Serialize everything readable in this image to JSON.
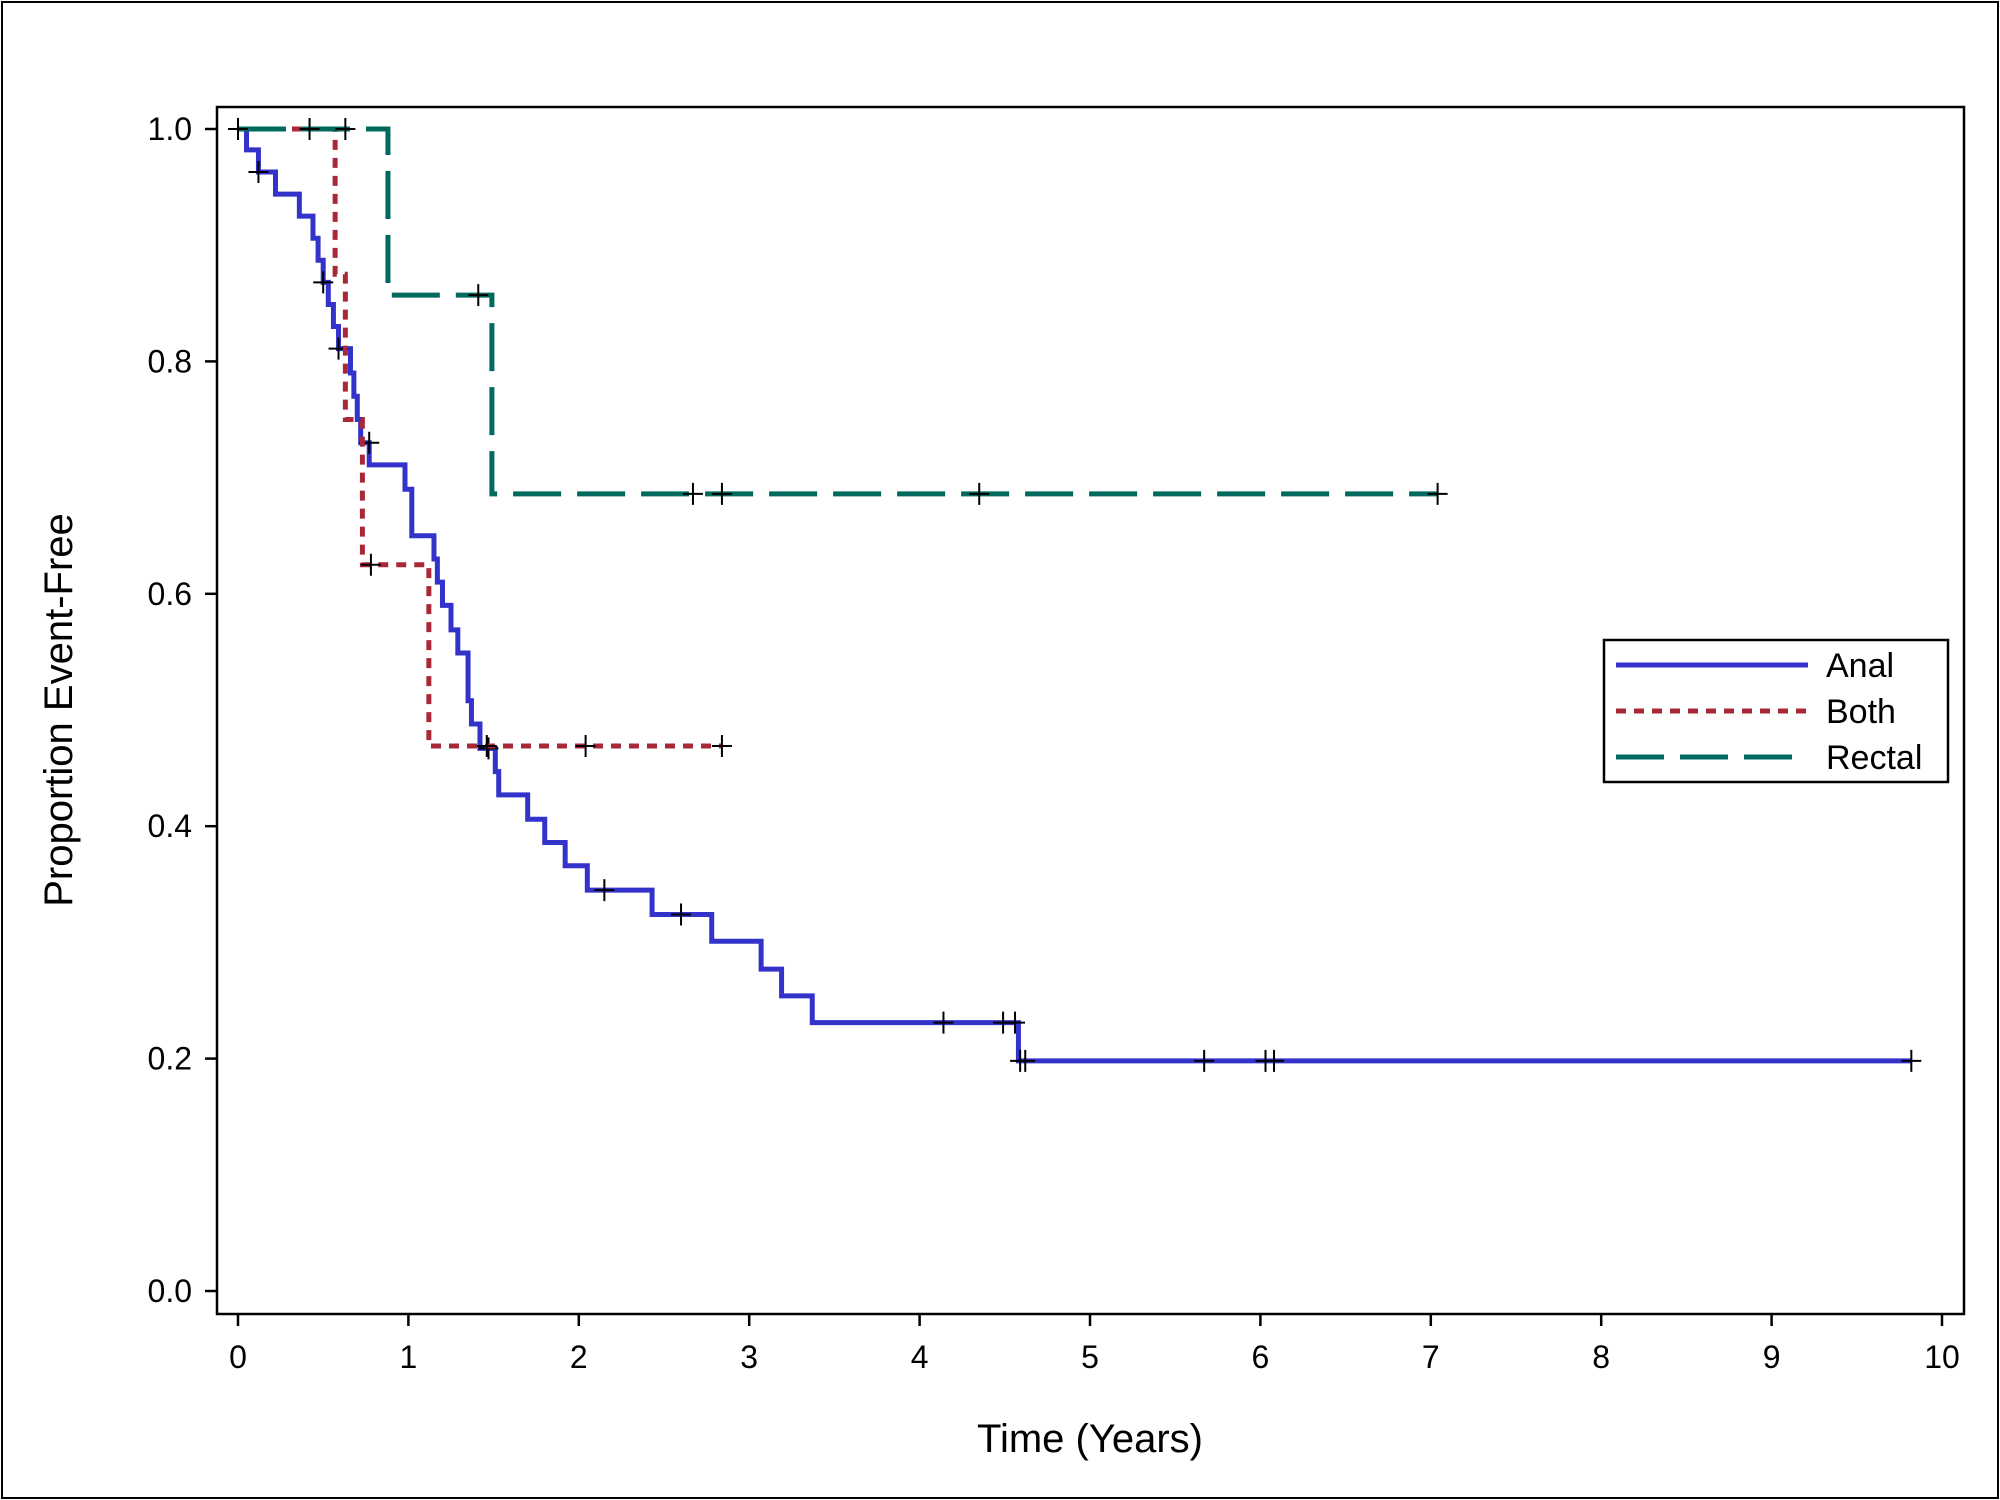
{
  "chart_data": {
    "type": "line",
    "title": "",
    "xlabel": "Time (Years)",
    "ylabel": "Proportion Event-Free",
    "xlim": [
      0,
      10
    ],
    "ylim": [
      0,
      1
    ],
    "x_ticks": [
      "0",
      "1",
      "2",
      "3",
      "4",
      "5",
      "6",
      "7",
      "8",
      "9",
      "10"
    ],
    "y_ticks": [
      "0.0",
      "0.2",
      "0.4",
      "0.6",
      "0.8",
      "1.0"
    ],
    "grid": false,
    "legend_position": "right",
    "step": true,
    "series": [
      {
        "name": "Anal",
        "color": "#3333cc",
        "line_style": "solid",
        "points": [
          [
            0,
            1.0
          ],
          [
            0.05,
            0.982
          ],
          [
            0.12,
            0.963
          ],
          [
            0.22,
            0.944
          ],
          [
            0.36,
            0.925
          ],
          [
            0.44,
            0.906
          ],
          [
            0.47,
            0.887
          ],
          [
            0.5,
            0.868
          ],
          [
            0.53,
            0.849
          ],
          [
            0.56,
            0.83
          ],
          [
            0.59,
            0.811
          ],
          [
            0.66,
            0.79
          ],
          [
            0.68,
            0.77
          ],
          [
            0.7,
            0.75
          ],
          [
            0.72,
            0.73
          ],
          [
            0.77,
            0.711
          ],
          [
            0.98,
            0.69
          ],
          [
            1.02,
            0.65
          ],
          [
            1.15,
            0.63
          ],
          [
            1.17,
            0.61
          ],
          [
            1.2,
            0.59
          ],
          [
            1.25,
            0.569
          ],
          [
            1.29,
            0.549
          ],
          [
            1.35,
            0.508
          ],
          [
            1.37,
            0.488
          ],
          [
            1.42,
            0.467
          ],
          [
            1.51,
            0.447
          ],
          [
            1.53,
            0.427
          ],
          [
            1.7,
            0.406
          ],
          [
            1.8,
            0.386
          ],
          [
            1.92,
            0.366
          ],
          [
            2.05,
            0.345
          ],
          [
            2.43,
            0.324
          ],
          [
            2.78,
            0.301
          ],
          [
            3.07,
            0.277
          ],
          [
            3.19,
            0.254
          ],
          [
            3.37,
            0.231
          ],
          [
            4.58,
            0.198
          ],
          [
            9.82,
            0.198
          ]
        ],
        "censored": [
          [
            0.12,
            0.963
          ],
          [
            0.5,
            0.868
          ],
          [
            0.59,
            0.811
          ],
          [
            0.77,
            0.73
          ],
          [
            1.47,
            0.467
          ],
          [
            2.15,
            0.345
          ],
          [
            2.6,
            0.324
          ],
          [
            4.14,
            0.231
          ],
          [
            4.49,
            0.231
          ],
          [
            4.56,
            0.231
          ],
          [
            4.59,
            0.198
          ],
          [
            4.62,
            0.198
          ],
          [
            5.67,
            0.198
          ],
          [
            6.03,
            0.198
          ],
          [
            6.08,
            0.198
          ],
          [
            9.82,
            0.198
          ]
        ]
      },
      {
        "name": "Both",
        "color": "#a82838",
        "line_style": "dotted",
        "points": [
          [
            0,
            1.0
          ],
          [
            0.57,
            0.875
          ],
          [
            0.63,
            0.75
          ],
          [
            0.73,
            0.625
          ],
          [
            1.12,
            0.469
          ],
          [
            2.84,
            0.469
          ]
        ],
        "censored": [
          [
            0.78,
            0.625
          ],
          [
            1.46,
            0.469
          ],
          [
            2.04,
            0.469
          ],
          [
            2.84,
            0.469
          ]
        ]
      },
      {
        "name": "Rectal",
        "color": "#006a5e",
        "line_style": "dashed",
        "points": [
          [
            0,
            1.0
          ],
          [
            0.88,
            0.857
          ],
          [
            1.49,
            0.686
          ],
          [
            7.04,
            0.686
          ]
        ],
        "censored": [
          [
            0.0,
            1.0
          ],
          [
            0.42,
            1.0
          ],
          [
            0.63,
            1.0
          ],
          [
            1.41,
            0.857
          ],
          [
            2.67,
            0.686
          ],
          [
            2.84,
            0.686
          ],
          [
            4.35,
            0.686
          ],
          [
            7.04,
            0.686
          ]
        ]
      }
    ]
  }
}
